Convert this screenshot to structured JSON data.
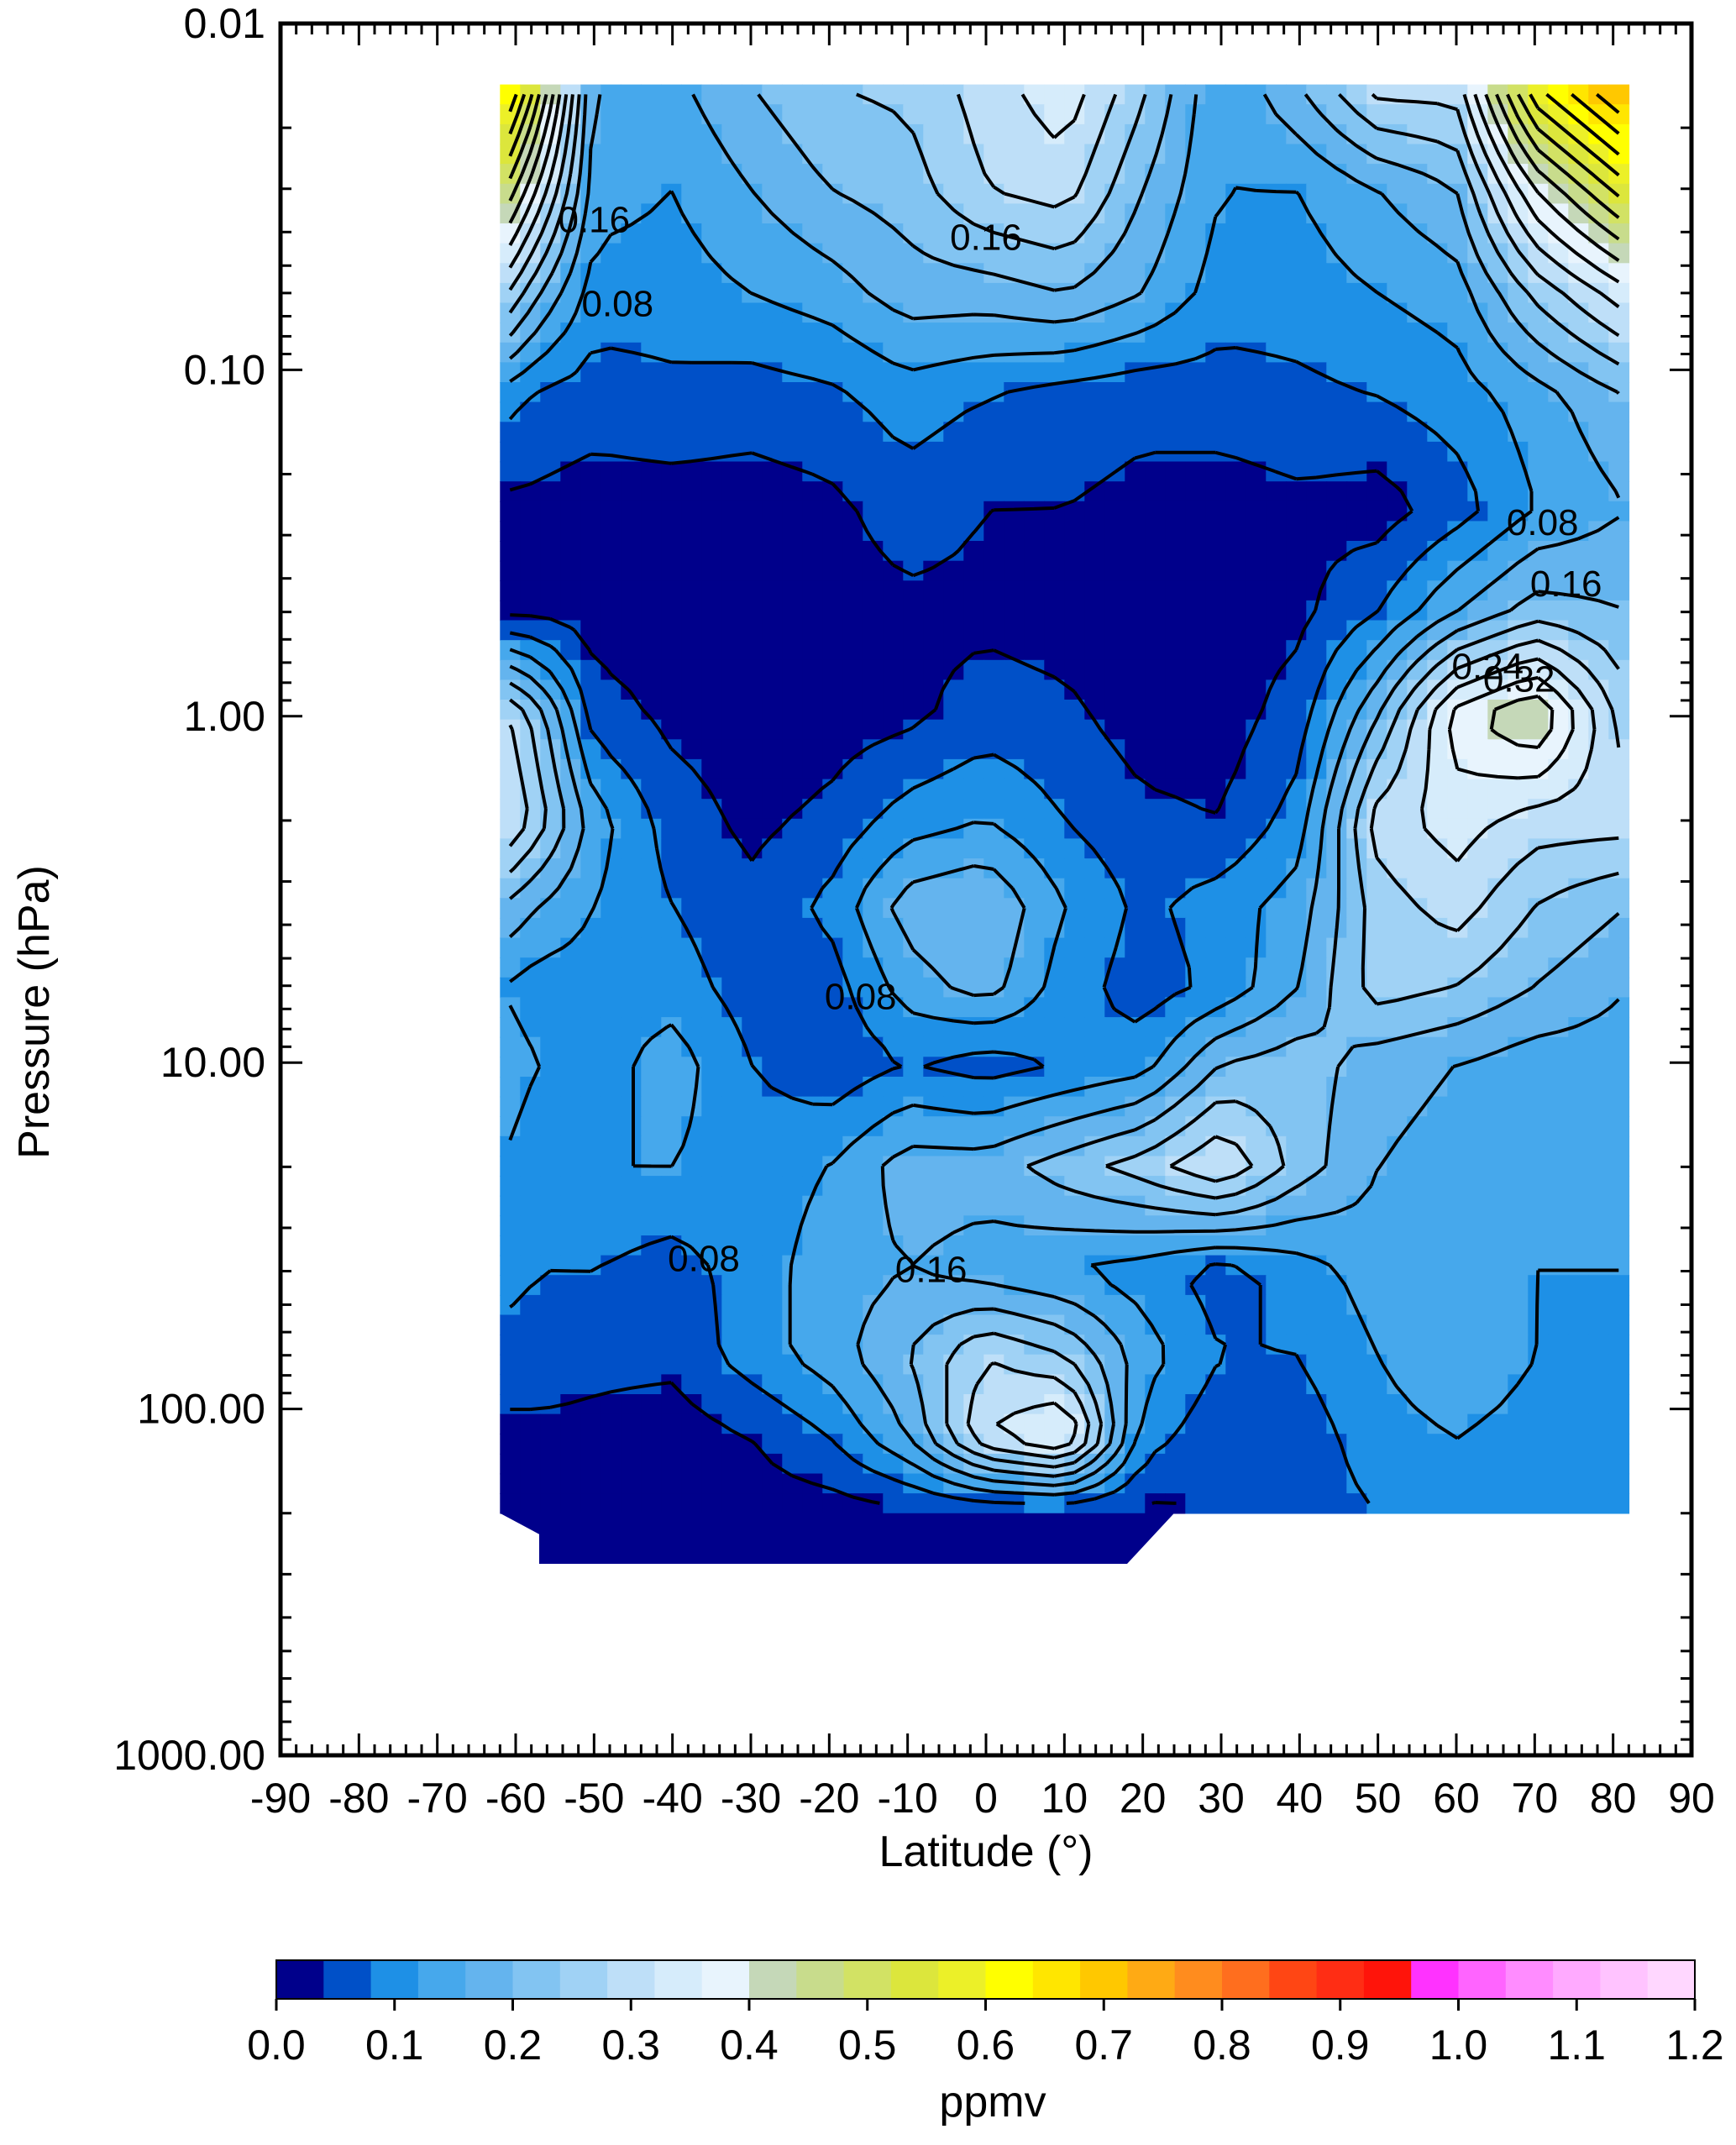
{
  "chart_data": {
    "type": "contour",
    "xlabel": "Latitude (°)",
    "ylabel": "Pressure (hPa)",
    "x_ticks": [
      -90,
      -80,
      -70,
      -60,
      -50,
      -40,
      -30,
      -20,
      -10,
      0,
      10,
      20,
      30,
      40,
      50,
      60,
      70,
      80,
      90
    ],
    "x_tick_labels": [
      "-90",
      "-80",
      "-70",
      "-60",
      "-50",
      "-40",
      "-30",
      "-20",
      "-10",
      "0",
      "10",
      "20",
      "30",
      "40",
      "50",
      "60",
      "70",
      "80",
      "90"
    ],
    "xlim": [
      -90,
      90
    ],
    "y_scale": "log",
    "ylim": [
      1000,
      0.01
    ],
    "y_ticks": [
      0.01,
      0.1,
      1,
      10,
      100,
      1000
    ],
    "y_tick_labels": [
      "0.01",
      "0.10",
      "1.00",
      "10.00",
      "100.00",
      "1000.00"
    ],
    "contour_levels_labeled": [
      {
        "text": "0.16",
        "lat": -50,
        "p": 0.04
      },
      {
        "text": "0.08",
        "lat": -47,
        "p": 0.07
      },
      {
        "text": "0.16",
        "lat": 0,
        "p": 0.045
      },
      {
        "text": "0.08",
        "lat": 71,
        "p": 0.3
      },
      {
        "text": "0.16",
        "lat": 74,
        "p": 0.45
      },
      {
        "text": "0.24",
        "lat": 64,
        "p": 0.78
      },
      {
        "text": "0.32",
        "lat": 68,
        "p": 0.85
      },
      {
        "text": "0.08",
        "lat": -16,
        "p": 7.0
      },
      {
        "text": "0.08",
        "lat": -36,
        "p": 40
      },
      {
        "text": "0.16",
        "lat": -7,
        "p": 43
      }
    ],
    "field_grid": {
      "lat": [
        -62,
        -57,
        -50,
        -40,
        -30,
        -20,
        -10,
        0,
        10,
        20,
        30,
        40,
        50,
        60,
        70,
        82
      ],
      "pressure": [
        0.015,
        0.03,
        0.06,
        0.12,
        0.25,
        0.5,
        1,
        2,
        3.5,
        6,
        10,
        20,
        40,
        70,
        120,
        200
      ],
      "values_ppmv": [
        [
          0.7,
          0.5,
          0.15,
          0.15,
          0.2,
          0.24,
          0.25,
          0.3,
          0.35,
          0.25,
          0.12,
          0.2,
          0.3,
          0.3,
          0.6,
          0.75
        ],
        [
          0.5,
          0.35,
          0.14,
          0.12,
          0.16,
          0.2,
          0.22,
          0.28,
          0.3,
          0.2,
          0.12,
          0.12,
          0.16,
          0.2,
          0.4,
          0.55
        ],
        [
          0.3,
          0.2,
          0.1,
          0.1,
          0.12,
          0.14,
          0.18,
          0.18,
          0.2,
          0.16,
          0.1,
          0.1,
          0.12,
          0.14,
          0.25,
          0.35
        ],
        [
          0.1,
          0.07,
          0.06,
          0.07,
          0.06,
          0.07,
          0.1,
          0.08,
          0.06,
          0.05,
          0.06,
          0.07,
          0.08,
          0.1,
          0.14,
          0.2
        ],
        [
          0.03,
          0.03,
          0.02,
          0.02,
          0.02,
          0.03,
          0.06,
          0.04,
          0.04,
          0.03,
          0.02,
          0.03,
          0.02,
          0.06,
          0.12,
          0.16
        ],
        [
          0.03,
          0.03,
          0.02,
          0.02,
          0.02,
          0.02,
          0.03,
          0.03,
          0.02,
          0.02,
          0.02,
          0.03,
          0.08,
          0.16,
          0.22,
          0.2
        ],
        [
          0.3,
          0.22,
          0.06,
          0.03,
          0.02,
          0.02,
          0.03,
          0.06,
          0.05,
          0.02,
          0.02,
          0.06,
          0.2,
          0.38,
          0.45,
          0.25
        ],
        [
          0.34,
          0.26,
          0.14,
          0.06,
          0.03,
          0.05,
          0.1,
          0.12,
          0.08,
          0.05,
          0.04,
          0.1,
          0.3,
          0.34,
          0.3,
          0.3
        ],
        [
          0.2,
          0.16,
          0.12,
          0.08,
          0.05,
          0.09,
          0.18,
          0.2,
          0.12,
          0.07,
          0.1,
          0.14,
          0.26,
          0.3,
          0.24,
          0.2
        ],
        [
          0.12,
          0.1,
          0.1,
          0.1,
          0.06,
          0.06,
          0.14,
          0.18,
          0.1,
          0.06,
          0.09,
          0.16,
          0.26,
          0.24,
          0.2,
          0.16
        ],
        [
          0.14,
          0.12,
          0.1,
          0.14,
          0.08,
          0.05,
          0.08,
          0.06,
          0.08,
          0.1,
          0.2,
          0.22,
          0.18,
          0.16,
          0.14,
          0.14
        ],
        [
          0.12,
          0.1,
          0.12,
          0.12,
          0.1,
          0.12,
          0.18,
          0.18,
          0.22,
          0.26,
          0.32,
          0.22,
          0.16,
          0.14,
          0.12,
          0.14
        ],
        [
          0.1,
          0.08,
          0.08,
          0.06,
          0.1,
          0.14,
          0.16,
          0.14,
          0.12,
          0.1,
          0.06,
          0.1,
          0.14,
          0.14,
          0.12,
          0.12
        ],
        [
          0.06,
          0.06,
          0.05,
          0.05,
          0.1,
          0.14,
          0.2,
          0.28,
          0.24,
          0.14,
          0.08,
          0.08,
          0.12,
          0.16,
          0.12,
          0.1
        ],
        [
          0.03,
          0.03,
          0.03,
          0.02,
          0.04,
          0.08,
          0.16,
          0.32,
          0.38,
          0.1,
          0.05,
          0.06,
          0.1,
          0.12,
          0.1,
          0.12
        ],
        [
          0.02,
          0.02,
          0.02,
          0.02,
          0.02,
          0.02,
          0.03,
          0.04,
          0.04,
          0.03,
          0.04,
          0.06,
          0.08,
          0.1,
          0.1,
          0.1
        ]
      ]
    },
    "colorbar": {
      "label": "ppmv",
      "min": 0.0,
      "max": 1.2,
      "step": 0.04,
      "tick_labels": [
        "0.0",
        "0.1",
        "0.2",
        "0.3",
        "0.4",
        "0.5",
        "0.6",
        "0.7",
        "0.8",
        "0.9",
        "1.0",
        "1.1",
        "1.2"
      ],
      "colors": [
        "#00008b",
        "#0050c8",
        "#1e90e6",
        "#46a8ec",
        "#64b4ee",
        "#82c4f2",
        "#a0d2f5",
        "#bedff8",
        "#d6ecfb",
        "#e8f4fd",
        "#c5d8b8",
        "#c8dc8c",
        "#d2e264",
        "#dce63c",
        "#ecf028",
        "#ffff00",
        "#ffe600",
        "#ffc800",
        "#ffaa14",
        "#ff8c1e",
        "#ff6e1e",
        "#ff4614",
        "#ff2d14",
        "#ff140a",
        "#ff32ff",
        "#ff64ff",
        "#ff8cff",
        "#ffaaff",
        "#ffc3ff",
        "#ffd7ff"
      ]
    }
  }
}
